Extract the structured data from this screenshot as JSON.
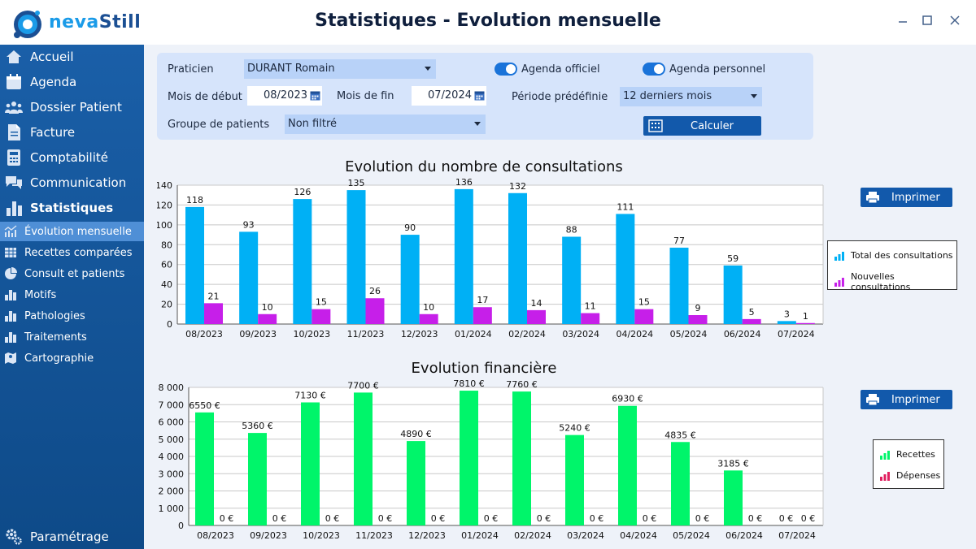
{
  "window": {
    "title": "Statistiques - Evolution mensuelle",
    "logo_part1": "neva",
    "logo_part2": "Still"
  },
  "sidebar": {
    "items": [
      {
        "label": "Accueil",
        "icon": "home-icon"
      },
      {
        "label": "Agenda",
        "icon": "calendar-icon"
      },
      {
        "label": "Dossier Patient",
        "icon": "users-icon"
      },
      {
        "label": "Facture",
        "icon": "document-icon"
      },
      {
        "label": "Comptabilité",
        "icon": "calculator-icon"
      },
      {
        "label": "Communication",
        "icon": "chat-icon"
      },
      {
        "label": "Statistiques",
        "icon": "bar-chart-icon"
      }
    ],
    "sub_items": [
      {
        "label": "Évolution mensuelle",
        "icon": "line-chart-icon",
        "active": true
      },
      {
        "label": "Recettes comparées",
        "icon": "table-icon",
        "active": false
      },
      {
        "label": "Consult et patients",
        "icon": "pie-chart-icon",
        "active": false
      },
      {
        "label": "Motifs",
        "icon": "bar-chart-icon",
        "active": false
      },
      {
        "label": "Pathologies",
        "icon": "bar-chart-icon",
        "active": false
      },
      {
        "label": "Traitements",
        "icon": "bar-chart-icon",
        "active": false
      },
      {
        "label": "Cartographie",
        "icon": "map-icon",
        "active": false
      }
    ],
    "settings_label": "Paramétrage"
  },
  "filters": {
    "praticien_label": "Praticien",
    "praticien_value": "DURANT Romain",
    "agenda_officiel_label": "Agenda officiel",
    "agenda_personnel_label": "Agenda personnel",
    "mois_debut_label": "Mois de début",
    "mois_debut_value": "08/2023",
    "mois_fin_label": "Mois de fin",
    "mois_fin_value": "07/2024",
    "periode_label": "Période prédéfinie",
    "periode_value": "12 derniers mois",
    "groupe_label": "Groupe de patients",
    "groupe_value": "Non filtré",
    "calculer_label": "Calculer"
  },
  "print_label": "Imprimer",
  "colors": {
    "consult_total": "#00b0f5",
    "consult_new": "#c61fe9",
    "recettes": "#00f56a",
    "depenses": "#e01f5f",
    "accent": "#1259ab"
  },
  "chart_data": [
    {
      "type": "bar",
      "title": "Evolution du nombre de consultations",
      "categories": [
        "08/2023",
        "09/2023",
        "10/2023",
        "11/2023",
        "12/2023",
        "01/2024",
        "02/2024",
        "03/2024",
        "04/2024",
        "05/2024",
        "06/2024",
        "07/2024"
      ],
      "series": [
        {
          "name": "Total des consultations",
          "values": [
            118,
            93,
            126,
            135,
            90,
            136,
            132,
            88,
            111,
            77,
            59,
            3
          ],
          "labels": [
            "118",
            "93",
            "126",
            "135",
            "90",
            "136",
            "132",
            "88",
            "111",
            "77",
            "59",
            "3"
          ]
        },
        {
          "name": "Nouvelles consultations",
          "values": [
            21,
            10,
            15,
            26,
            10,
            17,
            14,
            11,
            15,
            9,
            5,
            1
          ],
          "labels": [
            "21",
            "10",
            "15",
            "26",
            "10",
            "17",
            "14",
            "11",
            "15",
            "9",
            "5",
            "1"
          ]
        }
      ],
      "ylim": [
        0,
        140
      ],
      "yticks": [
        0,
        20,
        40,
        60,
        80,
        100,
        120,
        140
      ],
      "ytick_labels": [
        "0",
        "20",
        "40",
        "60",
        "80",
        "100",
        "120",
        "140"
      ],
      "grid": true,
      "legend": "right"
    },
    {
      "type": "bar",
      "title": "Evolution financière",
      "categories": [
        "08/2023",
        "09/2023",
        "10/2023",
        "11/2023",
        "12/2023",
        "01/2024",
        "02/2024",
        "03/2024",
        "04/2024",
        "05/2024",
        "06/2024",
        "07/2024"
      ],
      "series": [
        {
          "name": "Recettes",
          "values": [
            6550,
            5360,
            7130,
            7700,
            4890,
            7810,
            7760,
            5240,
            6930,
            4835,
            3185,
            0
          ],
          "labels": [
            "6550 €",
            "5360 €",
            "7130 €",
            "7700 €",
            "4890 €",
            "7810 €",
            "7760 €",
            "5240 €",
            "6930 €",
            "4835 €",
            "3185 €",
            "0 €"
          ]
        },
        {
          "name": "Dépenses",
          "values": [
            0,
            0,
            0,
            0,
            0,
            0,
            0,
            0,
            0,
            0,
            0,
            0
          ],
          "labels": [
            "0 €",
            "0 €",
            "0 €",
            "0 €",
            "0 €",
            "0 €",
            "0 €",
            "0 €",
            "0 €",
            "0 €",
            "0 €",
            "0 €"
          ]
        }
      ],
      "ylim": [
        0,
        8000
      ],
      "yticks": [
        0,
        1000,
        2000,
        3000,
        4000,
        5000,
        6000,
        7000,
        8000
      ],
      "ytick_labels": [
        "0",
        "1 000",
        "2 000",
        "3 000",
        "4 000",
        "5 000",
        "6 000",
        "7 000",
        "8 000"
      ],
      "grid": true,
      "legend": "right"
    }
  ]
}
